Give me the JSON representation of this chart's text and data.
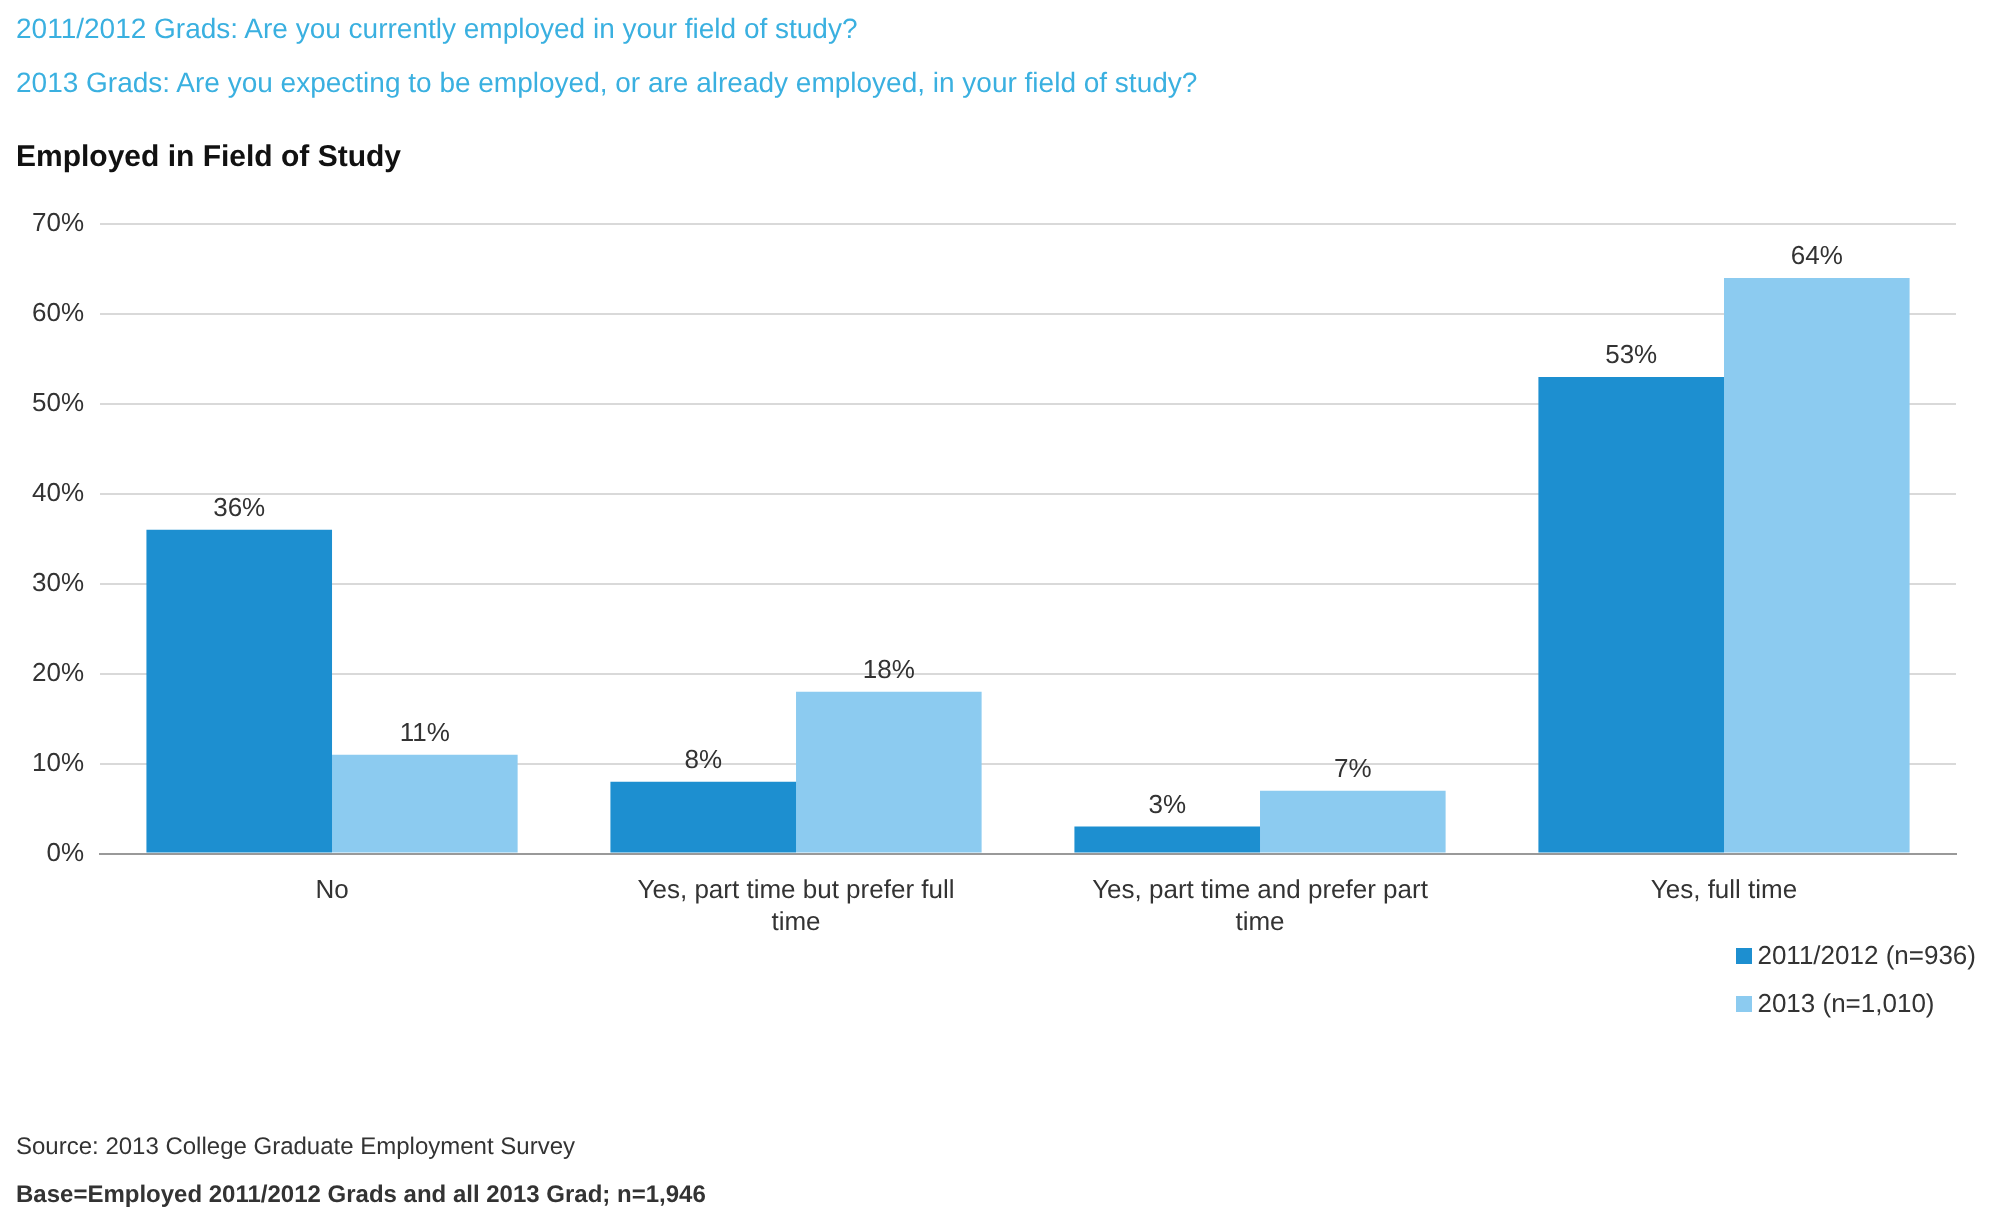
{
  "chart_data": {
    "type": "bar",
    "title": "Employed in Field of Study",
    "annotations": [
      "2011/2012 Grads: Are you currently employed in your field of study?",
      "2013 Grads: Are you expecting to be employed, or are already employed, in your field of study?",
      "Source: 2013 College Graduate Employment Survey",
      "Base=Employed 2011/2012 Grads and all 2013 Grad; n=1,946"
    ],
    "categories": [
      "No",
      "Yes, part time but prefer full time",
      "Yes, part time and prefer part time",
      "Yes, full time"
    ],
    "series": [
      {
        "name": "2011/2012 (n=936)",
        "color": "#1d8fd0",
        "values": [
          36,
          8,
          3,
          53
        ],
        "value_labels": [
          "36%",
          "8%",
          "3%",
          "53%"
        ]
      },
      {
        "name": "2013 (n=1,010)",
        "color": "#8ccbf0",
        "values": [
          11,
          18,
          7,
          64
        ],
        "value_labels": [
          "11%",
          "18%",
          "7%",
          "64%"
        ]
      }
    ],
    "ylim": [
      0,
      70
    ],
    "yticks": [
      {
        "value": 0,
        "label": "0%"
      },
      {
        "value": 10,
        "label": "10%"
      },
      {
        "value": 20,
        "label": "20%"
      },
      {
        "value": 30,
        "label": "30%"
      },
      {
        "value": 40,
        "label": "40%"
      },
      {
        "value": 50,
        "label": "50%"
      },
      {
        "value": 60,
        "label": "60%"
      },
      {
        "value": 70,
        "label": "70%"
      }
    ],
    "grid": "y",
    "legend": "bottom right"
  }
}
